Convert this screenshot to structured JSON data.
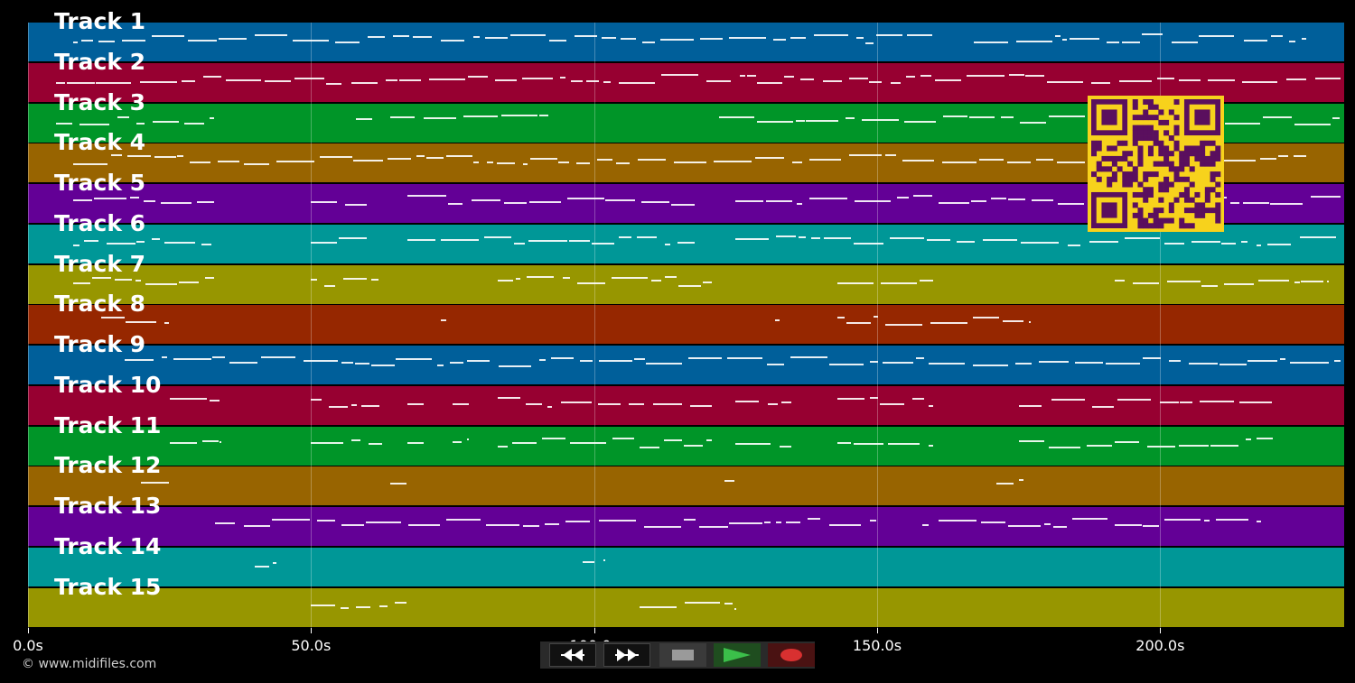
{
  "app": {
    "copyright": "© www.midifiles.com"
  },
  "timeline": {
    "max_seconds": 232.5,
    "ticks": [
      {
        "value": 0,
        "label": "0.0s"
      },
      {
        "value": 50,
        "label": "50.0s"
      },
      {
        "value": 100,
        "label": "100.0s"
      },
      {
        "value": 150,
        "label": "150.0s"
      },
      {
        "value": 200,
        "label": "200.0s"
      }
    ]
  },
  "tracks": [
    {
      "label": "Track 1",
      "color": "#005f9a"
    },
    {
      "label": "Track 2",
      "color": "#970031"
    },
    {
      "label": "Track 3",
      "color": "#009528"
    },
    {
      "label": "Track 4",
      "color": "#986400"
    },
    {
      "label": "Track 5",
      "color": "#630096"
    },
    {
      "label": "Track 6",
      "color": "#009797"
    },
    {
      "label": "Track 7",
      "color": "#979600"
    },
    {
      "label": "Track 8",
      "color": "#962700"
    },
    {
      "label": "Track 9",
      "color": "#005f9a"
    },
    {
      "label": "Track 10",
      "color": "#970031"
    },
    {
      "label": "Track 11",
      "color": "#009528"
    },
    {
      "label": "Track 12",
      "color": "#986400"
    },
    {
      "label": "Track 13",
      "color": "#630096"
    },
    {
      "label": "Track 14",
      "color": "#009797"
    },
    {
      "label": "Track 15",
      "color": "#979600"
    }
  ],
  "qr": {
    "fg": "#5a0f5e",
    "bg": "#f7d21c"
  },
  "transport": {
    "buttons": [
      {
        "name": "rewind-button",
        "icon": "rewind-icon"
      },
      {
        "name": "fast-forward-button",
        "icon": "fast-forward-icon"
      },
      {
        "name": "stop-button",
        "icon": "stop-icon"
      },
      {
        "name": "play-button",
        "icon": "play-icon"
      },
      {
        "name": "record-button",
        "icon": "record-icon"
      }
    ]
  }
}
